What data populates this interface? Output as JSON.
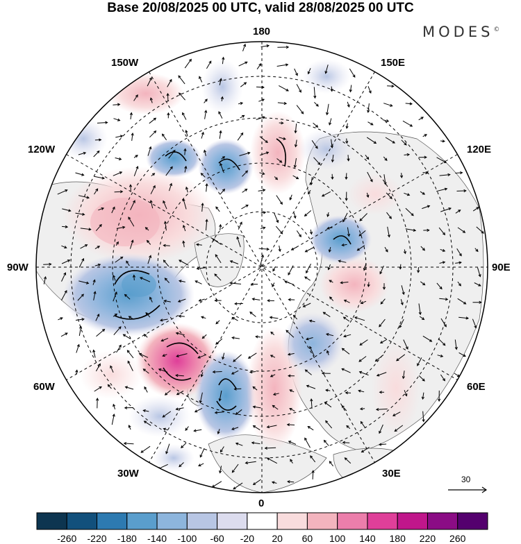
{
  "title": "Base 20/08/2025 00 UTC, valid 28/08/2025 00 UTC",
  "brand": "MODES",
  "brand_mark": "©",
  "longitudes": {
    "top": "180",
    "bottom": "0",
    "left": "90W",
    "right": "90E",
    "upper_left_1": "150W",
    "upper_left_2": "120W",
    "upper_right_1": "150E",
    "upper_right_2": "120E",
    "lower_left_1": "60W",
    "lower_left_2": "30W",
    "lower_right_1": "60E",
    "lower_right_2": "30E"
  },
  "reference_vector": "30",
  "colorbar": {
    "ticks": [
      "-260",
      "-220",
      "-180",
      "-140",
      "-100",
      "-60",
      "-20",
      "20",
      "60",
      "100",
      "140",
      "180",
      "220",
      "260"
    ],
    "colors": [
      "#0d3550",
      "#12507c",
      "#2d7ab1",
      "#5a9ecd",
      "#8db5dd",
      "#b8c6e4",
      "#dcdcee",
      "#ffffff",
      "#f9dcdd",
      "#f3b4be",
      "#ec7eab",
      "#df3f99",
      "#c0168b",
      "#8b0c85",
      "#54006e"
    ]
  },
  "colors": {
    "land": "#efefef",
    "ocean": "#ffffff"
  }
}
